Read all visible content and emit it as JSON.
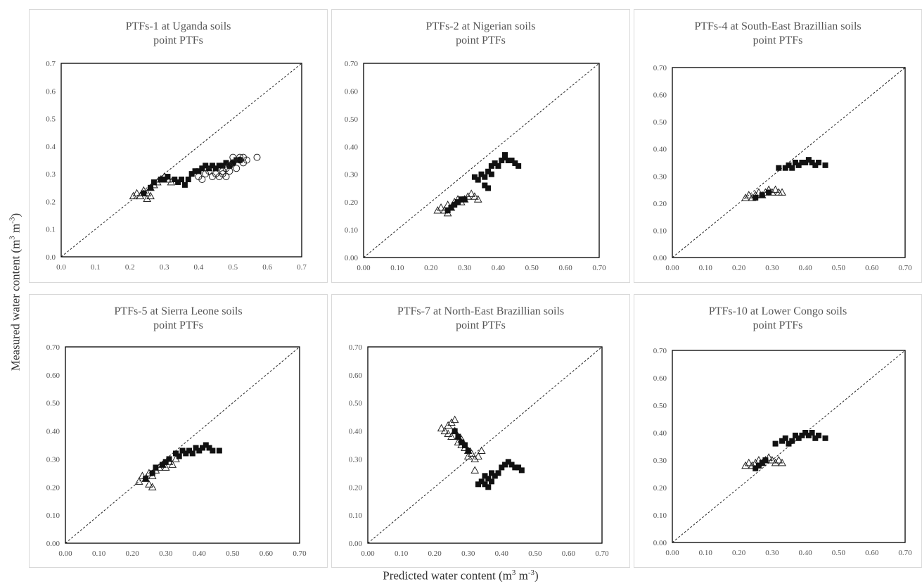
{
  "figure": {
    "ylabel": {
      "main": "Measured water content (m",
      "sup1": "3",
      "mid": " m",
      "sup2": "-3",
      "end": ")"
    },
    "xlabel": {
      "main": "Predicted water content (m",
      "sup1": "3",
      "mid": " m",
      "sup2": "-3",
      "end": ")"
    }
  },
  "chart_data": [
    {
      "type": "scatter",
      "title": "PTFs-1 at Uganda soils",
      "subtitle": "point PTFs",
      "xlim": [
        0,
        0.7
      ],
      "ylim": [
        0,
        0.7
      ],
      "ticks": [
        "0.0",
        "0.1",
        "0.2",
        "0.3",
        "0.4",
        "0.5",
        "0.6",
        "0.7"
      ],
      "reference_line": "1:1 dashed",
      "series": [
        {
          "marker": "triangle",
          "points": [
            [
              0.21,
              0.22
            ],
            [
              0.22,
              0.23
            ],
            [
              0.23,
              0.22
            ],
            [
              0.24,
              0.24
            ],
            [
              0.25,
              0.21
            ],
            [
              0.25,
              0.23
            ],
            [
              0.26,
              0.22
            ],
            [
              0.26,
              0.25
            ],
            [
              0.27,
              0.26
            ],
            [
              0.28,
              0.27
            ],
            [
              0.29,
              0.28
            ],
            [
              0.3,
              0.29
            ],
            [
              0.31,
              0.28
            ],
            [
              0.32,
              0.27
            ]
          ]
        },
        {
          "marker": "square",
          "points": [
            [
              0.24,
              0.23
            ],
            [
              0.26,
              0.25
            ],
            [
              0.27,
              0.27
            ],
            [
              0.29,
              0.28
            ],
            [
              0.3,
              0.28
            ],
            [
              0.31,
              0.29
            ],
            [
              0.33,
              0.28
            ],
            [
              0.34,
              0.27
            ],
            [
              0.35,
              0.28
            ],
            [
              0.36,
              0.26
            ],
            [
              0.37,
              0.28
            ],
            [
              0.38,
              0.3
            ],
            [
              0.39,
              0.31
            ],
            [
              0.4,
              0.31
            ],
            [
              0.41,
              0.32
            ],
            [
              0.42,
              0.33
            ],
            [
              0.43,
              0.32
            ],
            [
              0.44,
              0.33
            ],
            [
              0.45,
              0.32
            ],
            [
              0.46,
              0.33
            ],
            [
              0.47,
              0.33
            ],
            [
              0.48,
              0.34
            ],
            [
              0.49,
              0.33
            ],
            [
              0.5,
              0.34
            ],
            [
              0.51,
              0.35
            ],
            [
              0.52,
              0.35
            ]
          ]
        },
        {
          "marker": "circle",
          "points": [
            [
              0.4,
              0.29
            ],
            [
              0.41,
              0.28
            ],
            [
              0.42,
              0.3
            ],
            [
              0.43,
              0.31
            ],
            [
              0.44,
              0.29
            ],
            [
              0.45,
              0.3
            ],
            [
              0.46,
              0.29
            ],
            [
              0.47,
              0.31
            ],
            [
              0.47,
              0.3
            ],
            [
              0.48,
              0.32
            ],
            [
              0.48,
              0.29
            ],
            [
              0.49,
              0.33
            ],
            [
              0.49,
              0.31
            ],
            [
              0.5,
              0.34
            ],
            [
              0.5,
              0.36
            ],
            [
              0.51,
              0.32
            ],
            [
              0.52,
              0.35
            ],
            [
              0.52,
              0.36
            ],
            [
              0.53,
              0.34
            ],
            [
              0.53,
              0.36
            ],
            [
              0.54,
              0.35
            ],
            [
              0.57,
              0.36
            ]
          ]
        }
      ]
    },
    {
      "type": "scatter",
      "title": "PTFs-2 at Nigerian soils",
      "subtitle": "point PTFs",
      "xlim": [
        0,
        0.7
      ],
      "ylim": [
        0,
        0.7
      ],
      "ticks": [
        "0.00",
        "0.10",
        "0.20",
        "0.30",
        "0.40",
        "0.50",
        "0.60",
        "0.70"
      ],
      "reference_line": "1:1 dashed",
      "series": [
        {
          "marker": "triangle",
          "points": [
            [
              0.22,
              0.17
            ],
            [
              0.23,
              0.18
            ],
            [
              0.24,
              0.17
            ],
            [
              0.25,
              0.16
            ],
            [
              0.25,
              0.19
            ],
            [
              0.26,
              0.18
            ],
            [
              0.27,
              0.2
            ],
            [
              0.28,
              0.21
            ],
            [
              0.29,
              0.2
            ],
            [
              0.3,
              0.21
            ],
            [
              0.31,
              0.22
            ],
            [
              0.32,
              0.23
            ],
            [
              0.33,
              0.22
            ],
            [
              0.34,
              0.21
            ]
          ]
        },
        {
          "marker": "square",
          "points": [
            [
              0.25,
              0.17
            ],
            [
              0.26,
              0.18
            ],
            [
              0.27,
              0.19
            ],
            [
              0.28,
              0.2
            ],
            [
              0.29,
              0.21
            ],
            [
              0.3,
              0.21
            ],
            [
              0.33,
              0.29
            ],
            [
              0.34,
              0.28
            ],
            [
              0.35,
              0.3
            ],
            [
              0.36,
              0.29
            ],
            [
              0.36,
              0.26
            ],
            [
              0.37,
              0.25
            ],
            [
              0.37,
              0.31
            ],
            [
              0.38,
              0.3
            ],
            [
              0.38,
              0.33
            ],
            [
              0.39,
              0.34
            ],
            [
              0.4,
              0.33
            ],
            [
              0.41,
              0.35
            ],
            [
              0.42,
              0.36
            ],
            [
              0.42,
              0.37
            ],
            [
              0.43,
              0.35
            ],
            [
              0.44,
              0.35
            ],
            [
              0.45,
              0.34
            ],
            [
              0.46,
              0.33
            ]
          ]
        }
      ]
    },
    {
      "type": "scatter",
      "title": "PTFs-4  at South-East Brazillian  soils",
      "subtitle": "point PTFs",
      "xlim": [
        0,
        0.7
      ],
      "ylim": [
        0,
        0.7
      ],
      "ticks": [
        "0.00",
        "0.10",
        "0.20",
        "0.30",
        "0.40",
        "0.50",
        "0.60",
        "0.70"
      ],
      "reference_line": "1:1 dashed",
      "series": [
        {
          "marker": "triangle",
          "points": [
            [
              0.22,
              0.22
            ],
            [
              0.23,
              0.23
            ],
            [
              0.24,
              0.22
            ],
            [
              0.25,
              0.23
            ],
            [
              0.26,
              0.24
            ],
            [
              0.27,
              0.23
            ],
            [
              0.28,
              0.24
            ],
            [
              0.29,
              0.25
            ],
            [
              0.3,
              0.24
            ],
            [
              0.31,
              0.25
            ],
            [
              0.32,
              0.24
            ],
            [
              0.33,
              0.24
            ]
          ]
        },
        {
          "marker": "square",
          "points": [
            [
              0.25,
              0.22
            ],
            [
              0.27,
              0.23
            ],
            [
              0.29,
              0.24
            ],
            [
              0.32,
              0.33
            ],
            [
              0.34,
              0.33
            ],
            [
              0.35,
              0.34
            ],
            [
              0.36,
              0.33
            ],
            [
              0.37,
              0.35
            ],
            [
              0.38,
              0.34
            ],
            [
              0.39,
              0.35
            ],
            [
              0.4,
              0.35
            ],
            [
              0.41,
              0.36
            ],
            [
              0.42,
              0.35
            ],
            [
              0.43,
              0.34
            ],
            [
              0.44,
              0.35
            ],
            [
              0.46,
              0.34
            ]
          ]
        }
      ]
    },
    {
      "type": "scatter",
      "title": "PTFs-5 at Sierra Leone soils",
      "subtitle": "point PTFs",
      "xlim": [
        0,
        0.7
      ],
      "ylim": [
        0,
        0.7
      ],
      "ticks": [
        "0.00",
        "0.10",
        "0.20",
        "0.30",
        "0.40",
        "0.50",
        "0.60",
        "0.70"
      ],
      "reference_line": "1:1 dashed",
      "series": [
        {
          "marker": "triangle",
          "points": [
            [
              0.22,
              0.22
            ],
            [
              0.23,
              0.24
            ],
            [
              0.24,
              0.23
            ],
            [
              0.25,
              0.25
            ],
            [
              0.25,
              0.21
            ],
            [
              0.26,
              0.2
            ],
            [
              0.26,
              0.24
            ],
            [
              0.27,
              0.26
            ],
            [
              0.28,
              0.27
            ],
            [
              0.29,
              0.28
            ],
            [
              0.3,
              0.27
            ],
            [
              0.31,
              0.29
            ],
            [
              0.32,
              0.28
            ],
            [
              0.33,
              0.3
            ]
          ]
        },
        {
          "marker": "square",
          "points": [
            [
              0.24,
              0.23
            ],
            [
              0.26,
              0.25
            ],
            [
              0.27,
              0.27
            ],
            [
              0.29,
              0.28
            ],
            [
              0.3,
              0.29
            ],
            [
              0.31,
              0.3
            ],
            [
              0.33,
              0.32
            ],
            [
              0.34,
              0.31
            ],
            [
              0.35,
              0.33
            ],
            [
              0.36,
              0.32
            ],
            [
              0.37,
              0.33
            ],
            [
              0.38,
              0.32
            ],
            [
              0.39,
              0.34
            ],
            [
              0.4,
              0.33
            ],
            [
              0.41,
              0.34
            ],
            [
              0.42,
              0.35
            ],
            [
              0.43,
              0.34
            ],
            [
              0.44,
              0.33
            ],
            [
              0.46,
              0.33
            ]
          ]
        }
      ]
    },
    {
      "type": "scatter",
      "title": "PTFs-7 at North-East Brazillian  soils",
      "subtitle": "point PTFs",
      "xlim": [
        0,
        0.7
      ],
      "ylim": [
        0,
        0.7
      ],
      "ticks": [
        "0.00",
        "0.10",
        "0.20",
        "0.30",
        "0.40",
        "0.50",
        "0.60",
        "0.70"
      ],
      "reference_line": "1:1 dashed",
      "series": [
        {
          "marker": "triangle",
          "points": [
            [
              0.22,
              0.41
            ],
            [
              0.23,
              0.4
            ],
            [
              0.24,
              0.39
            ],
            [
              0.24,
              0.42
            ],
            [
              0.25,
              0.38
            ],
            [
              0.25,
              0.43
            ],
            [
              0.26,
              0.44
            ],
            [
              0.26,
              0.4
            ],
            [
              0.27,
              0.38
            ],
            [
              0.27,
              0.36
            ],
            [
              0.28,
              0.35
            ],
            [
              0.28,
              0.37
            ],
            [
              0.29,
              0.34
            ],
            [
              0.3,
              0.33
            ],
            [
              0.3,
              0.31
            ],
            [
              0.31,
              0.32
            ],
            [
              0.32,
              0.3
            ],
            [
              0.32,
              0.26
            ],
            [
              0.33,
              0.31
            ],
            [
              0.34,
              0.33
            ]
          ]
        },
        {
          "marker": "square",
          "points": [
            [
              0.26,
              0.4
            ],
            [
              0.27,
              0.38
            ],
            [
              0.28,
              0.36
            ],
            [
              0.29,
              0.35
            ],
            [
              0.3,
              0.33
            ],
            [
              0.33,
              0.21
            ],
            [
              0.34,
              0.22
            ],
            [
              0.35,
              0.24
            ],
            [
              0.35,
              0.21
            ],
            [
              0.36,
              0.2
            ],
            [
              0.36,
              0.23
            ],
            [
              0.37,
              0.22
            ],
            [
              0.37,
              0.25
            ],
            [
              0.38,
              0.24
            ],
            [
              0.39,
              0.25
            ],
            [
              0.4,
              0.27
            ],
            [
              0.41,
              0.28
            ],
            [
              0.42,
              0.29
            ],
            [
              0.43,
              0.28
            ],
            [
              0.44,
              0.27
            ],
            [
              0.45,
              0.27
            ],
            [
              0.46,
              0.26
            ]
          ]
        }
      ]
    },
    {
      "type": "scatter",
      "title": "PTFs-10 at Lower Congo soils",
      "subtitle": "point PTFs",
      "xlim": [
        0,
        0.7
      ],
      "ylim": [
        0,
        0.7
      ],
      "ticks": [
        "0.00",
        "0.10",
        "0.20",
        "0.30",
        "0.40",
        "0.50",
        "0.60",
        "0.70"
      ],
      "reference_line": "1:1 dashed",
      "series": [
        {
          "marker": "triangle",
          "points": [
            [
              0.22,
              0.28
            ],
            [
              0.23,
              0.29
            ],
            [
              0.24,
              0.28
            ],
            [
              0.25,
              0.29
            ],
            [
              0.26,
              0.3
            ],
            [
              0.27,
              0.29
            ],
            [
              0.28,
              0.3
            ],
            [
              0.29,
              0.31
            ],
            [
              0.3,
              0.3
            ],
            [
              0.31,
              0.29
            ],
            [
              0.32,
              0.3
            ],
            [
              0.33,
              0.29
            ]
          ]
        },
        {
          "marker": "square",
          "points": [
            [
              0.25,
              0.27
            ],
            [
              0.26,
              0.28
            ],
            [
              0.27,
              0.29
            ],
            [
              0.28,
              0.3
            ],
            [
              0.31,
              0.36
            ],
            [
              0.33,
              0.37
            ],
            [
              0.34,
              0.38
            ],
            [
              0.35,
              0.36
            ],
            [
              0.36,
              0.37
            ],
            [
              0.37,
              0.39
            ],
            [
              0.38,
              0.38
            ],
            [
              0.39,
              0.39
            ],
            [
              0.4,
              0.4
            ],
            [
              0.41,
              0.39
            ],
            [
              0.42,
              0.4
            ],
            [
              0.43,
              0.38
            ],
            [
              0.44,
              0.39
            ],
            [
              0.46,
              0.38
            ]
          ]
        }
      ]
    }
  ]
}
